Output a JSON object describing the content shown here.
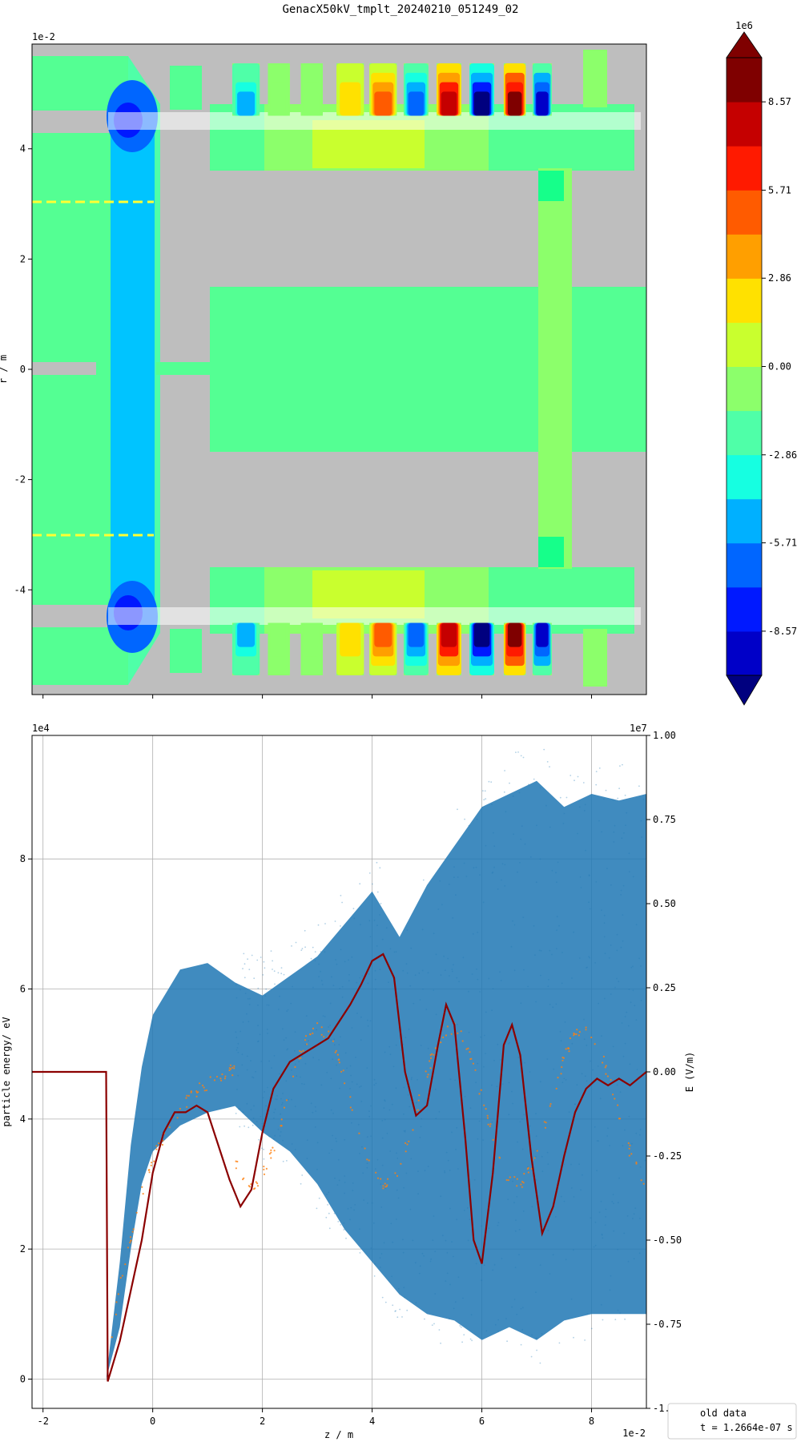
{
  "title": "GenacX50kV_tmplt_20240210_051249_02",
  "chart_data": [
    {
      "type": "heatmap",
      "name": "field-map",
      "ylabel": "r / m",
      "y_exponent": "1e-2",
      "y_ticks": [
        "4",
        "2",
        "0",
        "-2",
        "-4"
      ],
      "y_tick_values": [
        4,
        2,
        0,
        -2,
        -4
      ],
      "xlim": [
        -2.2,
        9.0
      ],
      "ylim": [
        -5.9,
        5.9
      ],
      "x_ticks": [
        -2,
        0,
        2,
        4,
        6,
        8
      ],
      "x_ticklabels_shown": false,
      "background_color": "#bebebe",
      "colormap": "jet",
      "colorbar": {
        "exponent": "1e6",
        "tick_labels": [
          "8.57",
          "5.71",
          "2.86",
          "0.00",
          "-2.86",
          "-5.71",
          "-8.57"
        ],
        "tick_values": [
          8.57,
          5.71,
          2.86,
          0.0,
          -2.86,
          -5.71,
          -8.57
        ],
        "range": [
          -10,
          10
        ],
        "levels": 14,
        "extend": "both",
        "colors": [
          "#00007f",
          "#0000c8",
          "#0019ff",
          "#0066ff",
          "#00b0ff",
          "#16ffe1",
          "#4fffa8",
          "#8cff6b",
          "#c9ff2e",
          "#ffe100",
          "#ff9f00",
          "#ff5b00",
          "#ff1a00",
          "#c50000",
          "#7f0000",
          "#800000"
        ]
      }
    },
    {
      "type": "scatter",
      "name": "particle-energy",
      "xlabel": "z / m",
      "ylabel": "particle energy/ eV",
      "y2label": "E (V/m)",
      "x_exponent": "1e-2",
      "y_exponent": "1e4",
      "y2_exponent": "1e7",
      "xlim": [
        -2.2,
        9.0
      ],
      "ylim": [
        -0.45,
        9.9
      ],
      "y2lim": [
        -1.0,
        1.0
      ],
      "x_ticks": [
        "-2",
        "0",
        "2",
        "4",
        "6",
        "8"
      ],
      "x_tick_values": [
        -2,
        0,
        2,
        4,
        6,
        8
      ],
      "y_ticks": [
        "0",
        "2",
        "4",
        "6",
        "8"
      ],
      "y_tick_values": [
        0,
        2,
        4,
        6,
        8
      ],
      "y2_ticks": [
        "1.00",
        "0.75",
        "0.50",
        "0.25",
        "0.00",
        "-0.25",
        "-0.50",
        "-0.75",
        "-1.00"
      ],
      "y2_tick_values": [
        1.0,
        0.75,
        0.5,
        0.25,
        0.0,
        -0.25,
        -0.5,
        -0.75,
        -1.0
      ],
      "grid": true,
      "colors": {
        "particles": "#1f77b4",
        "ref_particles": "#ff7f0e",
        "field": "#8b0000"
      },
      "field_curve": {
        "x": [
          -2.2,
          -0.85,
          -0.82,
          -0.6,
          -0.4,
          -0.2,
          0.0,
          0.2,
          0.4,
          0.6,
          0.8,
          1.0,
          1.2,
          1.4,
          1.6,
          1.8,
          2.0,
          2.2,
          2.5,
          2.8,
          3.0,
          3.2,
          3.4,
          3.6,
          3.8,
          4.0,
          4.2,
          4.4,
          4.6,
          4.8,
          5.0,
          5.2,
          5.35,
          5.5,
          5.7,
          5.85,
          6.0,
          6.2,
          6.4,
          6.55,
          6.7,
          6.9,
          7.1,
          7.3,
          7.5,
          7.7,
          7.9,
          8.1,
          8.3,
          8.5,
          8.7,
          9.0
        ],
        "y": [
          0.0,
          0.0,
          -0.92,
          -0.8,
          -0.65,
          -0.5,
          -0.3,
          -0.18,
          -0.12,
          -0.12,
          -0.1,
          -0.12,
          -0.22,
          -0.32,
          -0.4,
          -0.35,
          -0.18,
          -0.05,
          0.03,
          0.06,
          0.08,
          0.1,
          0.15,
          0.2,
          0.26,
          0.33,
          0.35,
          0.28,
          0.0,
          -0.13,
          -0.1,
          0.08,
          0.2,
          0.14,
          -0.2,
          -0.5,
          -0.57,
          -0.3,
          0.08,
          0.14,
          0.05,
          -0.25,
          -0.48,
          -0.4,
          -0.25,
          -0.12,
          -0.05,
          -0.02,
          -0.04,
          -0.02,
          -0.04,
          0.0
        ]
      },
      "envelope": {
        "x": [
          -0.85,
          -0.6,
          -0.4,
          -0.2,
          0.0,
          0.5,
          1.0,
          1.5,
          2.0,
          2.5,
          3.0,
          3.5,
          4.0,
          4.5,
          5.0,
          5.5,
          6.0,
          6.5,
          7.0,
          7.5,
          8.0,
          8.5,
          9.0
        ],
        "upper": [
          0.0,
          1.8,
          3.6,
          4.8,
          5.6,
          6.3,
          6.4,
          6.1,
          5.9,
          6.2,
          6.5,
          7.0,
          7.5,
          6.8,
          7.6,
          8.2,
          8.8,
          9.0,
          9.2,
          8.8,
          9.0,
          8.9,
          9.0
        ],
        "lower": [
          0.0,
          0.8,
          2.0,
          3.0,
          3.5,
          3.9,
          4.1,
          4.2,
          3.8,
          3.5,
          3.0,
          2.3,
          1.8,
          1.3,
          1.0,
          0.9,
          0.6,
          0.8,
          0.6,
          0.9,
          1.0,
          1.0,
          1.0
        ]
      },
      "legend": {
        "location": "lower-right",
        "lines": [
          "old data",
          "t = 1.2664e-07 s"
        ]
      }
    }
  ]
}
